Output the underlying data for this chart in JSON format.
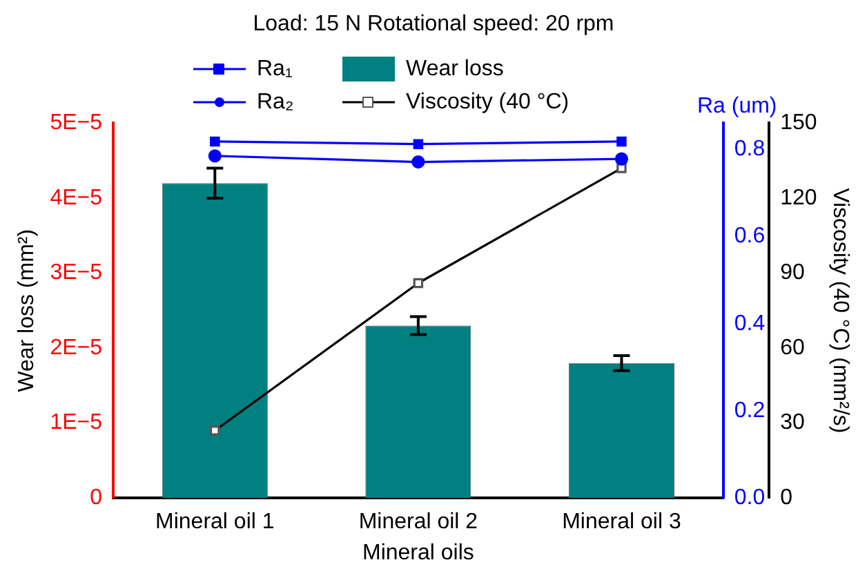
{
  "chart_data": {
    "type": "bar",
    "title": "Load: 15 N Rotational speed: 20 rpm",
    "xlabel": "Mineral oils",
    "ylabel": "Wear loss (mm²)",
    "y2label": "Ra (um)",
    "y3label": "Viscosity (40 °C) (mm²/s)",
    "categories": [
      "Mineral oil 1",
      "Mineral oil 2",
      "Mineral oil 3"
    ],
    "series": [
      {
        "name": "Ra₁",
        "type": "line",
        "axis": "y2",
        "color": "#0000ff",
        "marker": "square",
        "values": [
          0.818,
          0.812,
          0.818
        ]
      },
      {
        "name": "Ra₂",
        "type": "line",
        "axis": "y2",
        "color": "#0000ff",
        "marker": "circle",
        "values": [
          0.785,
          0.771,
          0.778
        ]
      },
      {
        "name": "Wear loss",
        "color": "#008080",
        "values": [
          4.2e-05,
          2.3e-05,
          1.8e-05
        ],
        "errors": [
          2e-06,
          1.2e-06,
          1e-06
        ]
      },
      {
        "name": "Viscosity (40 °C)",
        "type": "line",
        "axis": "y3",
        "color": "#000000",
        "marker": "square",
        "values": [
          27,
          86,
          132
        ]
      }
    ],
    "ylim": [
      0,
      5e-05
    ],
    "yticks": [
      {
        "value": 0,
        "label": "0"
      },
      {
        "value": 1e-05,
        "label": "1E−5"
      },
      {
        "value": 2e-05,
        "label": "2E−5"
      },
      {
        "value": 3e-05,
        "label": "3E−5"
      },
      {
        "value": 4e-05,
        "label": "4E−5"
      },
      {
        "value": 5e-05,
        "label": "5E−5"
      }
    ],
    "y2lim": [
      0,
      0.86
    ],
    "y2ticks": [
      {
        "value": 0,
        "label": "0.0"
      },
      {
        "value": 0.2,
        "label": "0.2"
      },
      {
        "value": 0.4,
        "label": "0.4"
      },
      {
        "value": 0.6,
        "label": "0.6"
      },
      {
        "value": 0.8,
        "label": "0.8"
      }
    ],
    "y3lim": [
      0,
      150
    ],
    "y3ticks": [
      0,
      30,
      60,
      90,
      120,
      150
    ],
    "legend": "top",
    "grid": false
  }
}
